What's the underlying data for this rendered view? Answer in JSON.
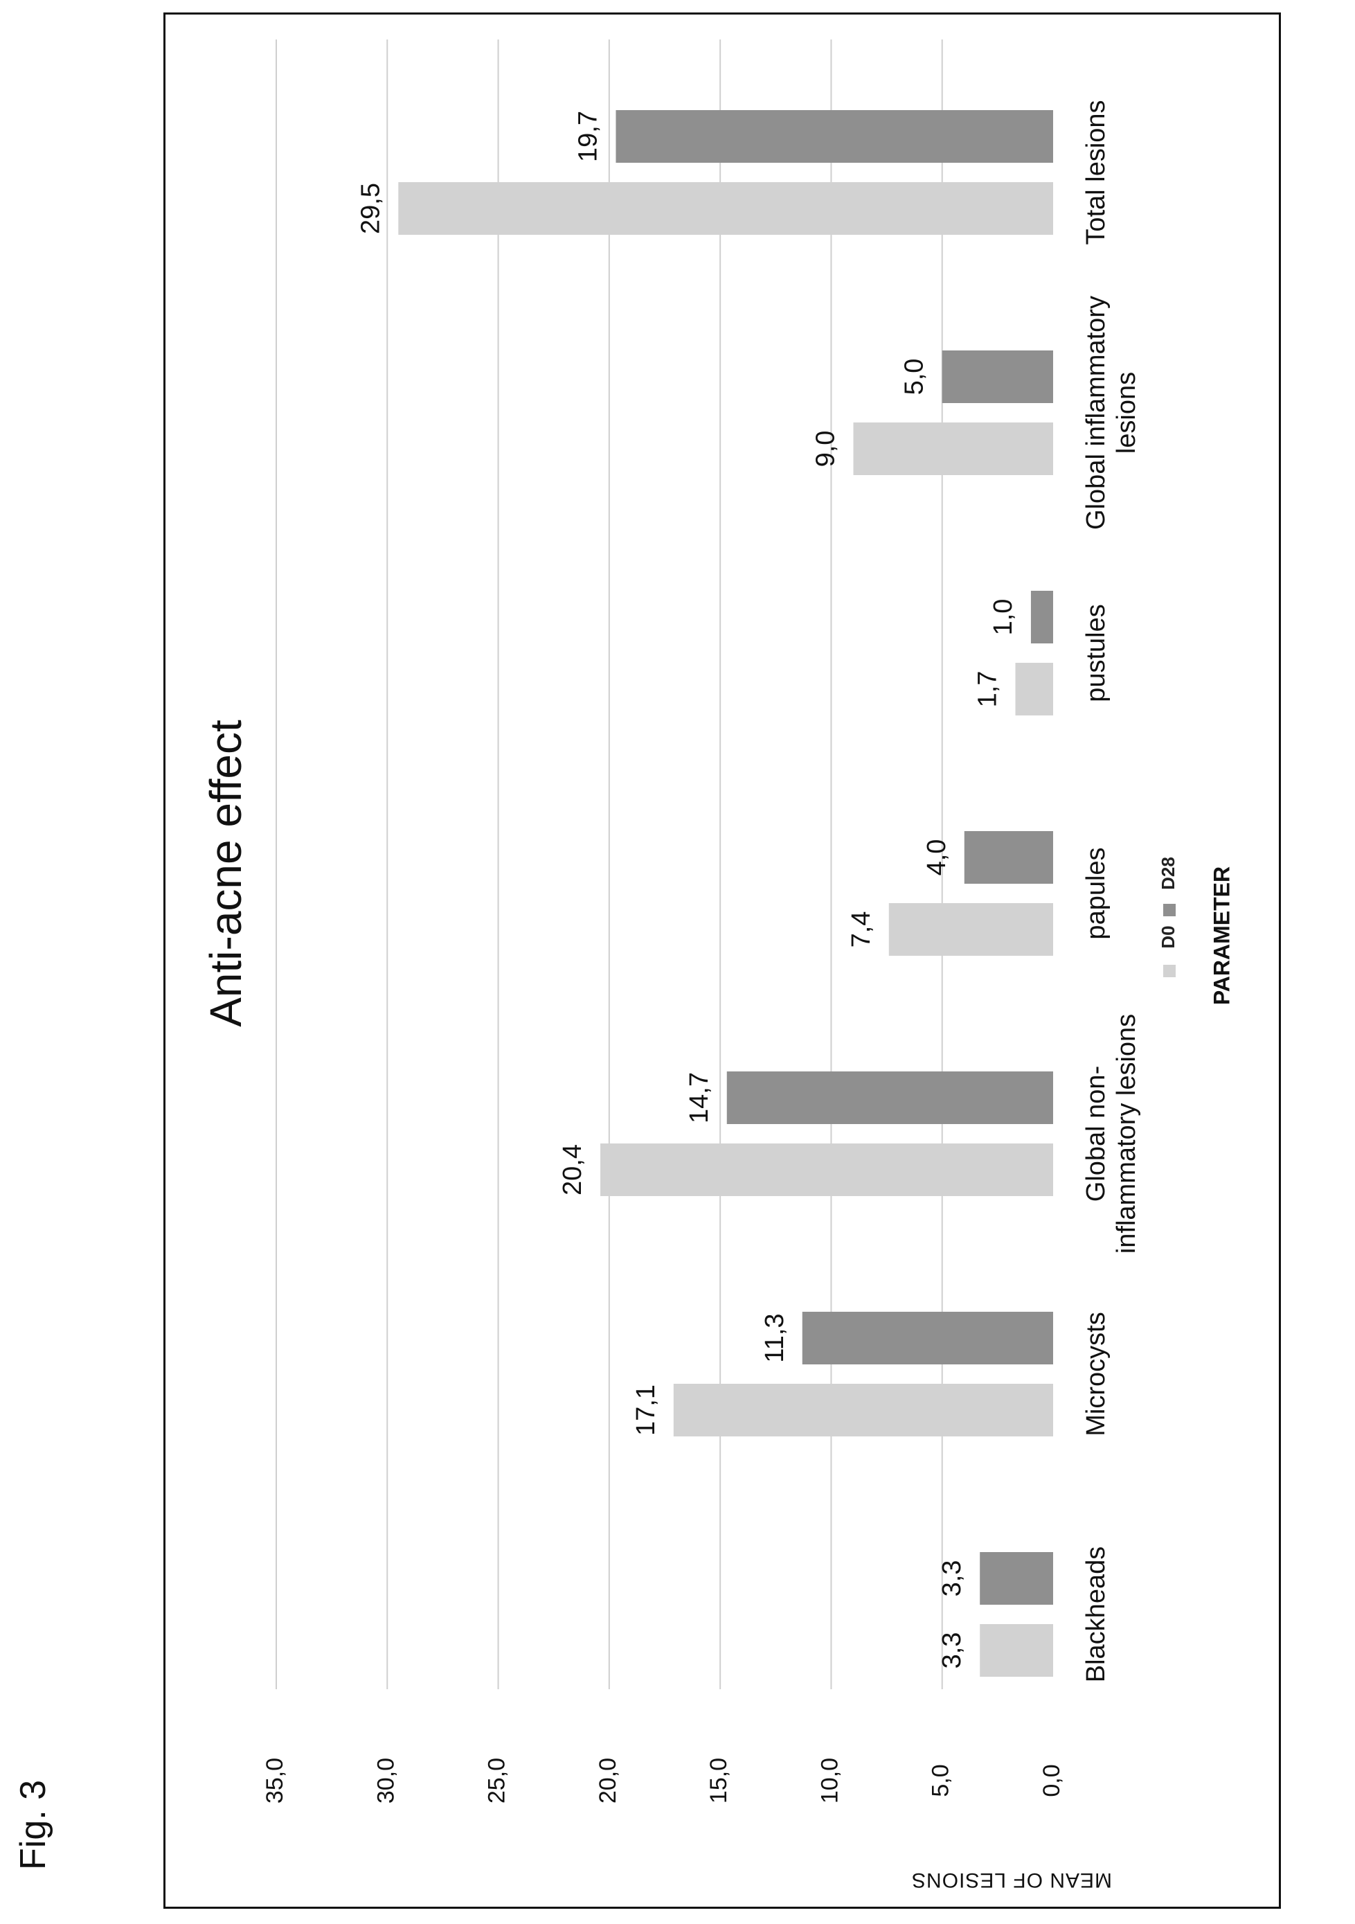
{
  "figure_label": "Fig. 3",
  "chart_data": {
    "type": "bar",
    "title": "Anti-acne effect",
    "xlabel": "PARAMETER",
    "ylabel": "MEAN OF LESIONS",
    "ylim": [
      0,
      35
    ],
    "yticks": [
      "0,0",
      "5,0",
      "10,0",
      "15,0",
      "20,0",
      "25,0",
      "30,0",
      "35,0"
    ],
    "grid": true,
    "legend_position": "bottom",
    "categories": [
      "Blackheads",
      "Microcysts",
      "Global non-inflammatory lesions",
      "papules",
      "pustules",
      "Global inflammatory lesions",
      "Total lesions"
    ],
    "category_lines": [
      [
        "Blackheads"
      ],
      [
        "Microcysts"
      ],
      [
        "Global non-",
        "inflammatory lesions"
      ],
      [
        "papules"
      ],
      [
        "pustules"
      ],
      [
        "Global inflammatory",
        "lesions"
      ],
      [
        "Total lesions"
      ]
    ],
    "series": [
      {
        "name": "D0",
        "color": "#d2d2d2",
        "values": [
          3.3,
          17.1,
          20.4,
          7.4,
          1.7,
          9.0,
          29.5
        ],
        "labels": [
          "3,3",
          "17,1",
          "20,4",
          "7,4",
          "1,7",
          "9,0",
          "29,5"
        ]
      },
      {
        "name": "D28",
        "color": "#8f8f8f",
        "values": [
          3.3,
          11.3,
          14.7,
          4.0,
          1.0,
          5.0,
          19.7
        ],
        "labels": [
          "3,3",
          "11,3",
          "14,7",
          "4,0",
          "1,0",
          "5,0",
          "19,7"
        ]
      }
    ]
  }
}
